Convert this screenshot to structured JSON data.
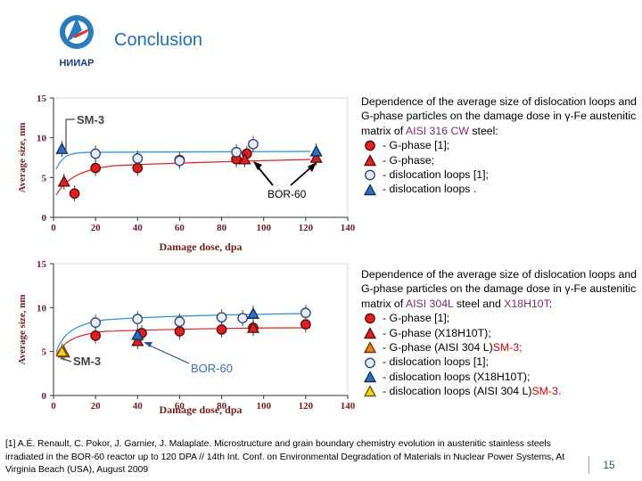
{
  "header": {
    "title": "Conclusion",
    "logo_text": "НИИАР"
  },
  "colors": {
    "title": "#1f6fb8",
    "red": "#e02020",
    "blue": "#2e8fd0",
    "highlight": "#7b2b6e"
  },
  "chart_data": [
    {
      "type": "scatter",
      "xlabel": "Damage dose, dpa",
      "ylabel": "Average size, nm",
      "xlim": [
        0,
        140
      ],
      "ylim": [
        0,
        15
      ],
      "xticks": [
        "0",
        "20",
        "40",
        "60",
        "80",
        "100",
        "120",
        "140"
      ],
      "yticks": [
        "0",
        "5",
        "10",
        "15"
      ],
      "annotations": [
        "SM-3",
        "BOR-60"
      ],
      "series": [
        {
          "name": "G-phase [1]",
          "marker": "circle-red",
          "x": [
            10,
            20,
            40,
            60,
            87,
            92
          ],
          "y": [
            3,
            6.2,
            6.2,
            7.2,
            7.3,
            8
          ]
        },
        {
          "name": "G-phase",
          "marker": "triangle-red",
          "x": [
            5,
            91,
            125
          ],
          "y": [
            4.5,
            7.3,
            7.5
          ]
        },
        {
          "name": "dislocation loops [1]",
          "marker": "circle-light",
          "x": [
            20,
            40,
            60,
            87,
            95
          ],
          "y": [
            8,
            7.4,
            7.1,
            8.2,
            9.2
          ]
        },
        {
          "name": "dislocation loops",
          "marker": "triangle-blue",
          "x": [
            4,
            125
          ],
          "y": [
            8.6,
            8.3
          ]
        }
      ],
      "fit_curves": [
        "red",
        "blue"
      ]
    },
    {
      "type": "scatter",
      "xlabel": "Damage dose, dpa",
      "ylabel": "Average size, nm",
      "xlim": [
        0,
        140
      ],
      "ylim": [
        0,
        15
      ],
      "xticks": [
        "0",
        "20",
        "40",
        "60",
        "80",
        "100",
        "120",
        "140"
      ],
      "yticks": [
        "0",
        "5",
        "10",
        "15"
      ],
      "annotations": [
        "SM-3",
        "BOR-60"
      ],
      "series": [
        {
          "name": "G-phase [1]",
          "marker": "circle-red",
          "x": [
            20,
            42,
            60,
            80,
            95,
            120
          ],
          "y": [
            6.8,
            7.1,
            7.3,
            7.5,
            7.7,
            8.1
          ]
        },
        {
          "name": "G-phase (X18H10T)",
          "marker": "triangle-red",
          "x": [
            40,
            95
          ],
          "y": [
            6.2,
            7.7
          ]
        },
        {
          "name": "G-phase (AISI 304 L) SM-3",
          "marker": "triangle-orange",
          "x": [
            5
          ],
          "y": [
            4.9
          ]
        },
        {
          "name": "dislocation loops [1]",
          "marker": "circle-light",
          "x": [
            20,
            40,
            60,
            80,
            90,
            120
          ],
          "y": [
            8.3,
            8.7,
            8.4,
            8.9,
            8.8,
            9.4
          ]
        },
        {
          "name": "dislocation loops (X18H10T)",
          "marker": "triangle-blue",
          "x": [
            40,
            95
          ],
          "y": [
            6.9,
            9.3
          ]
        },
        {
          "name": "dislocation loops (AISI 304 L) SM-3",
          "marker": "triangle-yellow",
          "x": [
            4
          ],
          "y": [
            5.0
          ]
        }
      ],
      "fit_curves": [
        "red",
        "blue"
      ]
    }
  ],
  "description1": {
    "intro": "Dependence of the average size of dislocation loops and G-phase particles on the damage dose in γ-Fe austenitic matrix of ",
    "steel": "AISI 316 CW",
    "suffix": " steel:",
    "legend": [
      {
        "marker": "circle-red",
        "text": "-  G-phase [1];"
      },
      {
        "marker": "triangle-red",
        "text": "-  G-phase;"
      },
      {
        "marker": "circle-light",
        "text": "-  dislocation loops [1];"
      },
      {
        "marker": "triangle-blue",
        "text": "-  dislocation loops ."
      }
    ]
  },
  "description2": {
    "intro": "Dependence of the average size of dislocation loops and G-phase particles on the damage dose in γ-Fe austenitic matrix of ",
    "steel1": "AISI 304L",
    "and": " steel and ",
    "steel2": "X18H10T",
    "colon": ":",
    "legend": [
      {
        "marker": "circle-red",
        "text": "- G-phase [1];",
        "tag": ""
      },
      {
        "marker": "triangle-red",
        "text": "- G-phase (X18H10T);",
        "tag": ""
      },
      {
        "marker": "triangle-orange",
        "text": "- G-phase (AISI 304 L) ",
        "tag": "SM-3;"
      },
      {
        "marker": "circle-light",
        "text": "- dislocation loops [1];",
        "tag": ""
      },
      {
        "marker": "triangle-blue",
        "text": "- dislocation loops (X18H10T);",
        "tag": ""
      },
      {
        "marker": "triangle-yellow",
        "text": "- dislocation loops (AISI 304 L) ",
        "tag": "SM-3."
      }
    ]
  },
  "footnote": "[1] A.É. Renault, C. Pokor, J. Garnier, J. Malaplate. Microstructure and grain boundary chemistry evolution in austenitic stainless steels irradiated in the BOR-60 reactor up to 120 DPA // 14th Int. Conf. on Environmental Degradation of Materials in Nuclear Power Systems, At Virginia Beach (USA), August 2009",
  "page_number": "15"
}
